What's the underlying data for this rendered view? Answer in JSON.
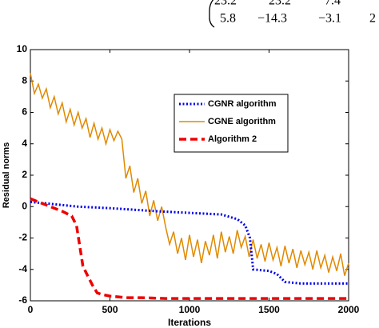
{
  "header_fragment": {
    "rows": [
      [
        "23.2",
        "23.2",
        "7.4"
      ],
      [
        "5.8",
        "−14.3",
        "−3.1",
        "2"
      ]
    ]
  },
  "chart_data": {
    "type": "line",
    "xlabel": "Iterations",
    "ylabel": "Residual norms",
    "xlim": [
      0,
      2000
    ],
    "xticks": [
      0,
      500,
      1000,
      1500,
      2000
    ],
    "ylim": [
      -6,
      10
    ],
    "yticks": [
      -6,
      -4,
      -2,
      0,
      2,
      4,
      6,
      8,
      10
    ],
    "legend": "upper right",
    "series": [
      {
        "name": "CGNR algorithm",
        "color": "#0000ee",
        "style": "dotted",
        "x": [
          0,
          100,
          300,
          500,
          800,
          1000,
          1200,
          1300,
          1350,
          1380,
          1400,
          1500,
          1550,
          1600,
          1700,
          2000
        ],
        "values": [
          0.3,
          0.2,
          0,
          -0.1,
          -0.3,
          -0.4,
          -0.5,
          -0.8,
          -1.2,
          -2.0,
          -4.0,
          -4.1,
          -4.3,
          -4.8,
          -4.9,
          -4.9
        ]
      },
      {
        "name": "CGNE algorithm",
        "color": "#e08a00",
        "style": "solid",
        "x": [
          0,
          25,
          50,
          75,
          100,
          125,
          150,
          175,
          200,
          225,
          250,
          275,
          300,
          325,
          350,
          375,
          400,
          425,
          450,
          475,
          500,
          525,
          550,
          575,
          600,
          625,
          650,
          675,
          700,
          725,
          750,
          775,
          800,
          825,
          850,
          875,
          900,
          925,
          950,
          975,
          1000,
          1025,
          1050,
          1075,
          1100,
          1125,
          1150,
          1175,
          1200,
          1225,
          1250,
          1275,
          1300,
          1325,
          1350,
          1375,
          1400,
          1425,
          1450,
          1475,
          1500,
          1525,
          1550,
          1575,
          1600,
          1625,
          1650,
          1675,
          1700,
          1725,
          1750,
          1775,
          1800,
          1825,
          1850,
          1875,
          1900,
          1925,
          1950,
          1975,
          2000
        ],
        "values": [
          8.5,
          7.2,
          7.8,
          6.9,
          7.5,
          6.3,
          7.0,
          5.9,
          6.6,
          5.4,
          6.2,
          5.2,
          6.0,
          5.0,
          5.6,
          4.4,
          5.3,
          4.3,
          5.0,
          4.0,
          4.9,
          4.2,
          4.8,
          4.3,
          1.8,
          2.6,
          0.9,
          1.8,
          0.2,
          1.0,
          -0.6,
          0.4,
          -0.9,
          0.0,
          -1.3,
          -2.4,
          -1.6,
          -3.0,
          -2.0,
          -3.4,
          -1.8,
          -3.2,
          -2.1,
          -3.6,
          -2.2,
          -3.1,
          -1.8,
          -3.3,
          -1.6,
          -2.9,
          -1.9,
          -3.0,
          -1.5,
          -2.6,
          -1.9,
          -3.2,
          -2.1,
          -3.3,
          -2.4,
          -3.5,
          -2.3,
          -3.4,
          -2.6,
          -3.8,
          -2.5,
          -3.6,
          -2.7,
          -3.9,
          -2.8,
          -3.7,
          -2.9,
          -4.0,
          -2.8,
          -3.9,
          -3.1,
          -4.2,
          -3.2,
          -4.1,
          -3.0,
          -4.4,
          -3.6
        ]
      },
      {
        "name": "Algorithm 2",
        "color": "#ee0000",
        "style": "dashed",
        "x": [
          0,
          100,
          200,
          260,
          290,
          310,
          330,
          360,
          390,
          420,
          450,
          500,
          600,
          700,
          850,
          1000,
          2000
        ],
        "values": [
          0.5,
          0.1,
          -0.3,
          -0.6,
          -1.2,
          -2.5,
          -3.8,
          -4.4,
          -5.0,
          -5.5,
          -5.6,
          -5.7,
          -5.8,
          -5.8,
          -5.85,
          -5.85,
          -5.85
        ]
      }
    ]
  }
}
